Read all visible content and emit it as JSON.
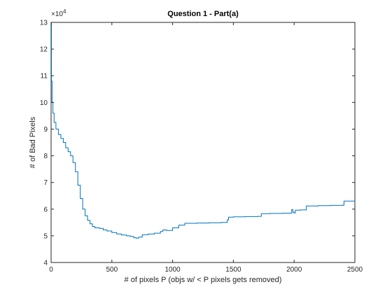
{
  "chart_data": {
    "type": "line",
    "title": "Question 1 - Part(a)",
    "xlabel": "# of pixels P (objs w/ < P pixels gets removed)",
    "ylabel": "# of Bad Pixels",
    "xlim": [
      0,
      2500
    ],
    "ylim": [
      40000,
      130000
    ],
    "x_ticks": [
      0,
      500,
      1000,
      1500,
      2000,
      2500
    ],
    "y_ticks": [
      40000,
      50000,
      60000,
      70000,
      80000,
      90000,
      100000,
      110000,
      120000,
      130000
    ],
    "x_tick_labels": [
      "0",
      "500",
      "1000",
      "1500",
      "2000",
      "2500"
    ],
    "y_tick_labels": [
      "4",
      "5",
      "6",
      "7",
      "8",
      "9",
      "10",
      "11",
      "12",
      "13"
    ],
    "y_exponent_base": "×10",
    "y_exponent_power": "4",
    "grid": false,
    "series_color": "#0072BD",
    "series": [
      {
        "x": [
          0,
          3,
          8,
          15,
          25,
          40,
          60,
          80,
          100,
          120,
          140,
          160,
          180,
          200,
          220,
          240,
          260,
          280,
          300,
          320,
          340,
          360,
          380,
          400,
          430,
          460,
          500,
          540,
          580,
          620,
          650,
          680,
          700,
          720,
          750,
          800,
          850,
          900,
          920,
          950,
          1000,
          1050,
          1100,
          1200,
          1300,
          1400,
          1450,
          1460,
          1500,
          1600,
          1700,
          1730,
          1800,
          1900,
          1970,
          1980,
          1990,
          2000,
          2010,
          2050,
          2100,
          2200,
          2300,
          2400,
          2410,
          2500
        ],
        "y": [
          130000,
          108000,
          100000,
          96000,
          92500,
          90000,
          88000,
          86500,
          85000,
          83000,
          81500,
          80000,
          77500,
          74000,
          69000,
          64000,
          60000,
          57500,
          55800,
          54500,
          53500,
          53000,
          53000,
          52800,
          52200,
          51800,
          51200,
          50700,
          50300,
          50000,
          49800,
          49300,
          49100,
          49500,
          50400,
          50700,
          51000,
          51600,
          52200,
          52000,
          53000,
          54000,
          54700,
          54800,
          54900,
          55000,
          56000,
          57000,
          57100,
          57200,
          57300,
          58300,
          58400,
          58500,
          58500,
          59800,
          58800,
          58600,
          59600,
          59700,
          61200,
          61300,
          61400,
          61500,
          63000,
          63100
        ]
      }
    ]
  }
}
